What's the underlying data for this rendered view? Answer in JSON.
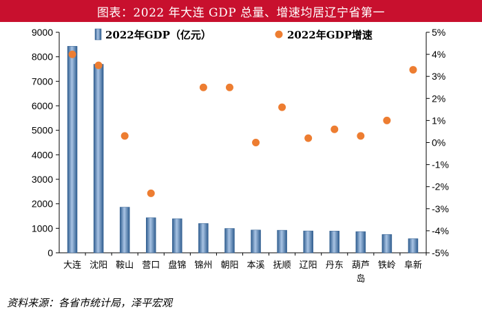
{
  "header": {
    "title": "图表：2022 年大连 GDP 总量、增速均居辽宁省第一"
  },
  "footer": {
    "source": "资料来源：各省市统计局，泽平宏观"
  },
  "colors": {
    "title_bg": "#c8102e",
    "bar": "#4f81bd",
    "dot": "#ed7d31"
  },
  "chart_data": {
    "type": "bar+scatter",
    "title": "2022 年大连 GDP 总量、增速均居辽宁省第一",
    "categories": [
      "大连",
      "沈阳",
      "鞍山",
      "营口",
      "盘锦",
      "锦州",
      "朝阳",
      "本溪",
      "抚顺",
      "辽阳",
      "丹东",
      "葫芦岛",
      "铁岭",
      "阜新"
    ],
    "category_lines": [
      [
        "大连"
      ],
      [
        "沈阳"
      ],
      [
        "鞍山"
      ],
      [
        "营口"
      ],
      [
        "盘锦"
      ],
      [
        "锦州"
      ],
      [
        "朝阳"
      ],
      [
        "本溪"
      ],
      [
        "抚顺"
      ],
      [
        "辽阳"
      ],
      [
        "丹东"
      ],
      [
        "葫芦",
        "岛"
      ],
      [
        "铁岭"
      ],
      [
        "阜新"
      ]
    ],
    "series": [
      {
        "name": "2022年GDP（亿元）",
        "type": "bar",
        "axis": "left",
        "values": [
          8430,
          7696,
          1863,
          1433,
          1390,
          1197,
          995,
          931,
          922,
          894,
          888,
          866,
          749,
          577
        ]
      },
      {
        "name": "2022年GDP增速",
        "type": "scatter",
        "axis": "right",
        "values": [
          4.0,
          3.5,
          0.3,
          -2.3,
          null,
          2.5,
          2.5,
          0.0,
          1.6,
          0.2,
          0.6,
          0.3,
          1.0,
          3.3
        ]
      }
    ],
    "left_axis": {
      "min": 0,
      "max": 9000,
      "step": 1000,
      "ticks": [
        "0",
        "1000",
        "2000",
        "3000",
        "4000",
        "5000",
        "6000",
        "7000",
        "8000",
        "9000"
      ]
    },
    "right_axis": {
      "min": -5,
      "max": 5,
      "step": 1,
      "ticks": [
        "-5%",
        "-4%",
        "-3%",
        "-2%",
        "-1%",
        "0%",
        "1%",
        "2%",
        "3%",
        "4%",
        "5%"
      ]
    },
    "legend": {
      "placement": "top",
      "items": [
        "2022年GDP（亿元）",
        "2022年GDP增速"
      ]
    }
  }
}
